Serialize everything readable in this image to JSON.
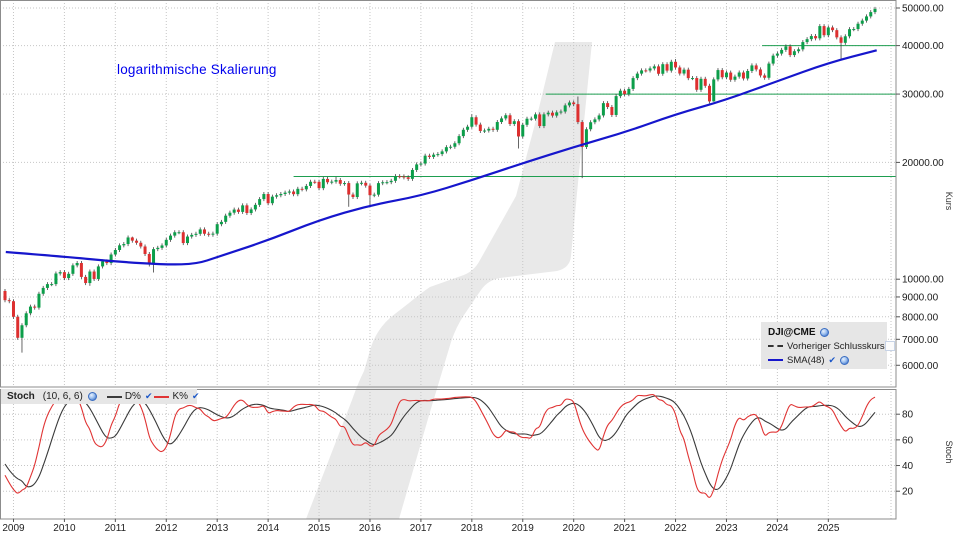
{
  "annotation": {
    "text": "logarithmische Skalierung",
    "color": "#0000ee"
  },
  "legend": {
    "symbol": "DJI@CME",
    "items": [
      {
        "label": "Vorheriger Schlusskurs",
        "checked": false
      },
      {
        "label": "SMA(48)",
        "checked": true
      }
    ]
  },
  "stoch_header": {
    "name": "Stoch",
    "params": "(10, 6, 6)",
    "series": [
      {
        "label": "D%",
        "color": "#3a3a3a",
        "checked": true
      },
      {
        "label": "K%",
        "color": "#e03434",
        "checked": true
      }
    ]
  },
  "axis_titles": {
    "price": "Kurs",
    "stoch": "Stoch"
  },
  "chart_data": {
    "type": "candlestick",
    "symbol": "DJI@CME",
    "timeframe": "monthly",
    "scale": "logarithmic",
    "start_month": "2008-10",
    "up_color": "#0c9e4a",
    "down_color": "#dd2f2f",
    "wick_color": "#404040",
    "closes": [
      9325,
      8829,
      8776,
      8001,
      7063,
      7609,
      8168,
      8500,
      8447,
      9172,
      9496,
      9712,
      9713,
      10345,
      10428,
      10067,
      10325,
      10857,
      11009,
      10137,
      9774,
      10466,
      10015,
      10788,
      11118,
      11006,
      11578,
      11892,
      12226,
      12320,
      12811,
      12570,
      12414,
      12143,
      11614,
      10913,
      11955,
      12046,
      12218,
      12633,
      12952,
      13212,
      13214,
      12393,
      12880,
      13009,
      13091,
      13437,
      13096,
      13026,
      13104,
      13861,
      14054,
      14579,
      14840,
      15116,
      14910,
      15500,
      14810,
      15130,
      15546,
      16086,
      16577,
      15699,
      16322,
      16458,
      16581,
      16717,
      16827,
      16563,
      17098,
      17043,
      17391,
      17828,
      17823,
      17165,
      18133,
      17776,
      17841,
      18011,
      17620,
      17690,
      16528,
      16285,
      17664,
      17720,
      17425,
      16466,
      16517,
      17685,
      17774,
      17787,
      17930,
      18432,
      18401,
      18308,
      18142,
      19124,
      19763,
      19864,
      20812,
      20663,
      20941,
      21009,
      21350,
      21891,
      21948,
      22405,
      23377,
      24272,
      24719,
      26149,
      25029,
      24103,
      24163,
      24416,
      24271,
      25415,
      25965,
      26458,
      25116,
      25538,
      23327,
      25000,
      25916,
      25929,
      26593,
      24815,
      26600,
      26864,
      26403,
      26917,
      27046,
      28051,
      28538,
      28256,
      25409,
      21917,
      24346,
      25383,
      25813,
      26428,
      28430,
      27782,
      26502,
      29639,
      30606,
      29983,
      30932,
      32982,
      33875,
      34529,
      34503,
      34935,
      35361,
      33844,
      35820,
      34484,
      36338,
      35132,
      33893,
      34678,
      32977,
      32990,
      30775,
      32845,
      31510,
      28726,
      32733,
      34590,
      33147,
      34086,
      32657,
      33274,
      34098,
      32908,
      34408,
      35560,
      34722,
      33508,
      33053,
      35951,
      37690,
      38150,
      38996,
      39807,
      37816,
      38686,
      39119,
      40843,
      41563,
      42330,
      41763,
      44911,
      42544,
      44545,
      43841,
      42002,
      40669,
      42270,
      44095,
      44130,
      45545,
      46398,
      47562,
      48800,
      49750
    ],
    "low_overrides": {
      "2009-03": 6470,
      "2010-07": 9614,
      "2011-10": 10404,
      "2015-08": 15370,
      "2016-01": 15450,
      "2018-12": 21713,
      "2020-03": 18214,
      "2022-10": 28661,
      "2025-04": 36612
    },
    "high_overrides": {
      "2011-05": 12876,
      "2015-05": 18351,
      "2018-01": 26617,
      "2020-02": 29569,
      "2022-01": 36953
    },
    "sma": {
      "period": 48,
      "color": "#1616cc",
      "points": [
        [
          2008.85,
          11750
        ],
        [
          2010,
          11430
        ],
        [
          2011,
          11100
        ],
        [
          2012,
          10900
        ],
        [
          2012.6,
          10950
        ],
        [
          2013,
          11400
        ],
        [
          2014,
          12600
        ],
        [
          2015,
          14200
        ],
        [
          2016,
          15500
        ],
        [
          2017,
          16400
        ],
        [
          2018,
          18000
        ],
        [
          2019,
          19900
        ],
        [
          2020,
          21900
        ],
        [
          2021,
          23900
        ],
        [
          2022,
          26600
        ],
        [
          2023,
          29000
        ],
        [
          2024,
          32400
        ],
        [
          2025,
          36100
        ],
        [
          2025.95,
          38900
        ]
      ]
    },
    "stochastic": {
      "periods": [
        10,
        6,
        6
      ],
      "k_color": "#e03434",
      "d_color": "#3a3a3a",
      "range": [
        0,
        100
      ],
      "ticks": [
        20,
        40,
        60,
        80
      ]
    },
    "hlines": [
      {
        "value": 40000,
        "from_year": 2023.7,
        "color": "#1e9e50"
      },
      {
        "value": 30000,
        "from_year": 2019.45,
        "color": "#1e9e50"
      },
      {
        "value": 18400,
        "from_year": 2014.5,
        "color": "#1e9e50"
      }
    ],
    "price_ticks": [
      {
        "v": 50000,
        "label": "50000.00"
      },
      {
        "v": 40000,
        "label": "40000.00"
      },
      {
        "v": 30000,
        "label": "30000.00"
      },
      {
        "v": 20000,
        "label": "20000.00"
      },
      {
        "v": 10000,
        "label": "10000.00"
      },
      {
        "v": 9000,
        "label": "9000.00"
      },
      {
        "v": 8000,
        "label": "8000.00"
      },
      {
        "v": 7000,
        "label": "7000.00"
      },
      {
        "v": 6000,
        "label": "6000.00"
      }
    ],
    "years": [
      "2009",
      "2010",
      "2011",
      "2012",
      "2013",
      "2014",
      "2015",
      "2016",
      "2017",
      "2018",
      "2019",
      "2020",
      "2021",
      "2022",
      "2023",
      "2024",
      "2025"
    ]
  }
}
